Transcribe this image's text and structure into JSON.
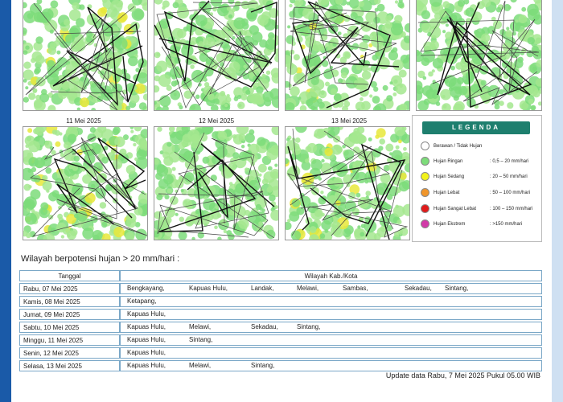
{
  "maps_top": [
    {
      "date": ""
    },
    {
      "date": ""
    },
    {
      "date": ""
    },
    {
      "date": ""
    }
  ],
  "maps_bottom": [
    {
      "date": "11 Mei 2025"
    },
    {
      "date": "12 Mei 2025"
    },
    {
      "date": "13 Mei 2025"
    }
  ],
  "legend": {
    "title": "LEGENDA",
    "items": [
      {
        "label": "Berawan / Tidak Hujan",
        "range": "",
        "color": "#ffffff"
      },
      {
        "label": "Hujan Ringan",
        "range": ": 0,5 – 20 mm/hari",
        "color": "#7ddc7a"
      },
      {
        "label": "Hujan Sedang",
        "range": ": 20 – 50 mm/hari",
        "color": "#f2f21a"
      },
      {
        "label": "Hujan Lebat",
        "range": ": 50 – 100 mm/hari",
        "color": "#f0962b"
      },
      {
        "label": "Hujan Sangat Lebat",
        "range": ": 100 – 150 mm/hari",
        "color": "#e01b1b"
      },
      {
        "label": "Hujan Ekstrem",
        "range": ": >150 mm/hari",
        "color": "#d23aa8"
      }
    ]
  },
  "section_title": "Wilayah berpotensi hujan > 20 mm/hari :",
  "table": {
    "headers": {
      "date": "Tanggal",
      "regions": "Wilayah Kab./Kota"
    },
    "rows": [
      {
        "date": "Rabu, 07 Mei 2025",
        "regions": [
          "Bengkayang,",
          "Kapuas Hulu,",
          "Landak,",
          "Melawi,",
          "Sambas,",
          "Sekadau,",
          "Sintang,"
        ]
      },
      {
        "date": "Kamis, 08 Mei 2025",
        "regions": [
          "Ketapang,"
        ]
      },
      {
        "date": "Jumat, 09 Mei 2025",
        "regions": [
          "Kapuas Hulu,"
        ]
      },
      {
        "date": "Sabtu, 10 Mei 2025",
        "regions": [
          "Kapuas Hulu,",
          "Melawi,",
          "Sekadau,",
          "Sintang,"
        ]
      },
      {
        "date": "Minggu, 11 Mei 2025",
        "regions": [
          "Kapuas Hulu,",
          "Sintang,"
        ]
      },
      {
        "date": "Senin, 12 Mei 2025",
        "regions": [
          "Kapuas Hulu,"
        ]
      },
      {
        "date": "Selasa, 13 Mei 2025",
        "regions": [
          "Kapuas Hulu,",
          "Melawi,",
          "Sintang,"
        ]
      }
    ]
  },
  "update_text": "Update data Rabu, 7 Mei 2025 Pukul 05.00 WIB"
}
